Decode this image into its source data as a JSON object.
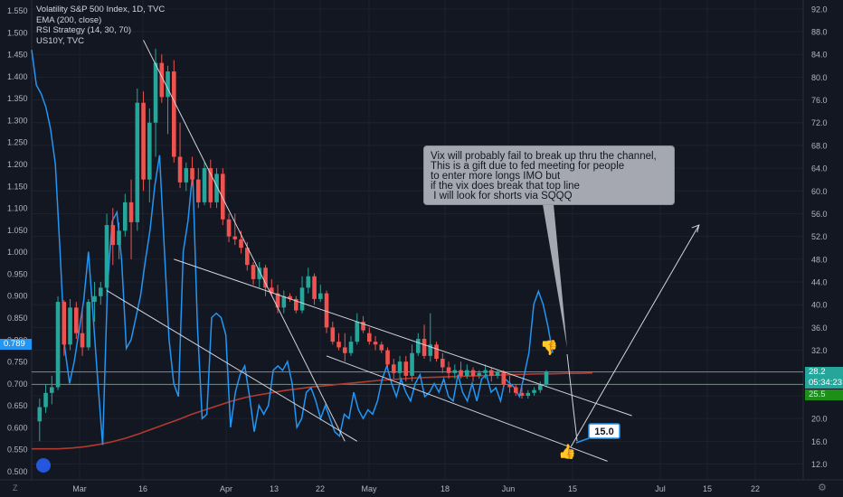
{
  "legend": {
    "title": "Volatility S&P 500 Index, 1D, TVC",
    "ema": "EMA (200, close)",
    "rsi": "RSI Strategy (14, 30, 70)",
    "us10y": "US10Y, TVC"
  },
  "annotation": {
    "text": "Vix will probably fail to break up thru the channel,\nThis is a gift due to fed meeting for people\nto enter more longs IMO but\nif the vix does break that top line\n I will look for shorts via SQQQ",
    "target_label": "15.0"
  },
  "price_badges": {
    "left_us10y": "0.789",
    "right_last": "28.2",
    "right_countdown": "05:34:23",
    "right_small": "25.5"
  },
  "corner_buttons": {
    "left": "Z",
    "right": "⚙"
  },
  "colors": {
    "background": "#131722",
    "up": "#26a69a",
    "down": "#ef5350",
    "us10y_line": "#2196f3",
    "ema_line": "#b33a2e",
    "trendlines": "#d1d4dc",
    "green_hline": "#4caf50",
    "teal_hline": "#26a69a"
  },
  "chart_data": {
    "type": "candlestick",
    "x_axis_labels": [
      "Mar",
      "16",
      "Apr",
      "13",
      "22",
      "May",
      "18",
      "Jun",
      "15",
      "Jul",
      "15",
      "22"
    ],
    "left_axis": {
      "label": "US10Y",
      "ticks": [
        0.5,
        0.55,
        0.6,
        0.65,
        0.7,
        0.75,
        0.8,
        0.85,
        0.9,
        0.95,
        1.0,
        1.05,
        1.1,
        1.15,
        1.2,
        1.25,
        1.3,
        1.35,
        1.4,
        1.45,
        1.5,
        1.55
      ]
    },
    "right_axis": {
      "label": "VIX",
      "ticks": [
        12,
        16,
        20,
        24,
        28,
        32,
        36,
        40,
        44,
        48,
        52,
        56,
        60,
        64,
        68,
        72,
        76,
        80,
        84,
        88,
        92
      ]
    },
    "vix_candles": [
      {
        "o": 19.5,
        "h": 23.5,
        "l": 16.0,
        "c": 22.0
      },
      {
        "o": 22.0,
        "h": 26.0,
        "l": 21.0,
        "c": 24.5
      },
      {
        "o": 24.5,
        "h": 27.5,
        "l": 22.5,
        "c": 25.5
      },
      {
        "o": 25.5,
        "h": 41.5,
        "l": 25.0,
        "c": 40.5
      },
      {
        "o": 40.5,
        "h": 40.8,
        "l": 31.0,
        "c": 33.0
      },
      {
        "o": 33.0,
        "h": 41.0,
        "l": 32.0,
        "c": 39.5
      },
      {
        "o": 39.5,
        "h": 40.5,
        "l": 34.0,
        "c": 35.0
      },
      {
        "o": 35.0,
        "h": 39.0,
        "l": 31.0,
        "c": 32.5
      },
      {
        "o": 32.5,
        "h": 41.0,
        "l": 32.0,
        "c": 40.5
      },
      {
        "o": 40.5,
        "h": 44.0,
        "l": 37.0,
        "c": 41.5
      },
      {
        "o": 41.5,
        "h": 44.0,
        "l": 40.0,
        "c": 43.0
      },
      {
        "o": 43.0,
        "h": 56.0,
        "l": 41.5,
        "c": 54.0
      },
      {
        "o": 54.0,
        "h": 57.0,
        "l": 47.0,
        "c": 50.5
      },
      {
        "o": 50.5,
        "h": 54.5,
        "l": 48.0,
        "c": 53.0
      },
      {
        "o": 53.0,
        "h": 59.5,
        "l": 52.0,
        "c": 58.0
      },
      {
        "o": 58.0,
        "h": 62.0,
        "l": 48.0,
        "c": 54.5
      },
      {
        "o": 54.5,
        "h": 78.0,
        "l": 53.0,
        "c": 75.5
      },
      {
        "o": 75.5,
        "h": 77.5,
        "l": 60.0,
        "c": 62.0
      },
      {
        "o": 62.0,
        "h": 74.5,
        "l": 58.0,
        "c": 72.0
      },
      {
        "o": 72.0,
        "h": 85.0,
        "l": 66.0,
        "c": 82.5
      },
      {
        "o": 82.5,
        "h": 84.0,
        "l": 75.5,
        "c": 76.5
      },
      {
        "o": 76.5,
        "h": 82.0,
        "l": 70.0,
        "c": 81.0
      },
      {
        "o": 81.0,
        "h": 83.0,
        "l": 65.0,
        "c": 66.0
      },
      {
        "o": 66.0,
        "h": 72.0,
        "l": 60.5,
        "c": 61.5
      },
      {
        "o": 61.5,
        "h": 65.0,
        "l": 60.0,
        "c": 64.0
      },
      {
        "o": 64.0,
        "h": 66.0,
        "l": 61.0,
        "c": 62.0
      },
      {
        "o": 62.0,
        "h": 64.0,
        "l": 57.0,
        "c": 58.0
      },
      {
        "o": 58.0,
        "h": 65.0,
        "l": 57.5,
        "c": 64.0
      },
      {
        "o": 64.0,
        "h": 65.5,
        "l": 57.0,
        "c": 58.0
      },
      {
        "o": 58.0,
        "h": 64.0,
        "l": 57.0,
        "c": 63.0
      },
      {
        "o": 63.0,
        "h": 64.0,
        "l": 54.0,
        "c": 55.0
      },
      {
        "o": 55.0,
        "h": 56.0,
        "l": 51.0,
        "c": 52.0
      },
      {
        "o": 52.0,
        "h": 56.0,
        "l": 50.5,
        "c": 51.5
      },
      {
        "o": 51.5,
        "h": 53.0,
        "l": 49.0,
        "c": 50.0
      },
      {
        "o": 50.0,
        "h": 51.0,
        "l": 46.0,
        "c": 47.0
      },
      {
        "o": 47.0,
        "h": 47.5,
        "l": 43.5,
        "c": 44.5
      },
      {
        "o": 44.5,
        "h": 47.5,
        "l": 43.0,
        "c": 46.5
      },
      {
        "o": 46.5,
        "h": 47.0,
        "l": 41.5,
        "c": 43.0
      },
      {
        "o": 43.0,
        "h": 44.5,
        "l": 41.5,
        "c": 42.0
      },
      {
        "o": 42.0,
        "h": 43.5,
        "l": 38.5,
        "c": 39.5
      },
      {
        "o": 39.5,
        "h": 42.5,
        "l": 38.5,
        "c": 41.5
      },
      {
        "o": 41.5,
        "h": 42.0,
        "l": 40.5,
        "c": 41.0
      },
      {
        "o": 41.0,
        "h": 41.5,
        "l": 38.5,
        "c": 39.0
      },
      {
        "o": 39.0,
        "h": 45.0,
        "l": 38.5,
        "c": 43.0
      },
      {
        "o": 43.0,
        "h": 46.5,
        "l": 42.0,
        "c": 45.0
      },
      {
        "o": 45.0,
        "h": 45.5,
        "l": 40.0,
        "c": 41.0
      },
      {
        "o": 41.0,
        "h": 43.5,
        "l": 40.5,
        "c": 42.0
      },
      {
        "o": 42.0,
        "h": 42.5,
        "l": 35.0,
        "c": 36.0
      },
      {
        "o": 36.0,
        "h": 37.0,
        "l": 33.0,
        "c": 33.5
      },
      {
        "o": 33.5,
        "h": 35.0,
        "l": 32.0,
        "c": 32.5
      },
      {
        "o": 32.5,
        "h": 35.0,
        "l": 30.0,
        "c": 31.5
      },
      {
        "o": 31.5,
        "h": 34.5,
        "l": 31.0,
        "c": 33.5
      },
      {
        "o": 33.5,
        "h": 38.5,
        "l": 33.0,
        "c": 37.0
      },
      {
        "o": 37.0,
        "h": 38.0,
        "l": 35.0,
        "c": 35.5
      },
      {
        "o": 35.0,
        "h": 36.0,
        "l": 33.0,
        "c": 33.5
      },
      {
        "o": 33.5,
        "h": 34.5,
        "l": 32.0,
        "c": 33.0
      },
      {
        "o": 33.0,
        "h": 33.5,
        "l": 31.5,
        "c": 32.0
      },
      {
        "o": 32.0,
        "h": 32.5,
        "l": 29.0,
        "c": 29.5
      },
      {
        "o": 29.5,
        "h": 30.5,
        "l": 27.0,
        "c": 28.0
      },
      {
        "o": 28.0,
        "h": 31.0,
        "l": 27.0,
        "c": 30.0
      },
      {
        "o": 30.0,
        "h": 31.0,
        "l": 26.5,
        "c": 27.5
      },
      {
        "o": 27.5,
        "h": 33.0,
        "l": 26.5,
        "c": 31.5
      },
      {
        "o": 31.5,
        "h": 35.0,
        "l": 31.0,
        "c": 34.0
      },
      {
        "o": 34.0,
        "h": 36.5,
        "l": 30.5,
        "c": 31.0
      },
      {
        "o": 31.0,
        "h": 38.5,
        "l": 30.0,
        "c": 33.0
      },
      {
        "o": 33.0,
        "h": 33.5,
        "l": 30.0,
        "c": 30.5
      },
      {
        "o": 30.5,
        "h": 31.5,
        "l": 28.0,
        "c": 29.0
      },
      {
        "o": 29.0,
        "h": 30.0,
        "l": 27.0,
        "c": 28.0
      },
      {
        "o": 28.0,
        "h": 29.5,
        "l": 27.0,
        "c": 28.5
      },
      {
        "o": 28.5,
        "h": 30.0,
        "l": 27.0,
        "c": 27.5
      },
      {
        "o": 27.5,
        "h": 29.5,
        "l": 27.0,
        "c": 28.5
      },
      {
        "o": 28.5,
        "h": 29.0,
        "l": 26.5,
        "c": 27.5
      },
      {
        "o": 27.5,
        "h": 28.5,
        "l": 27.0,
        "c": 28.0
      },
      {
        "o": 28.0,
        "h": 29.5,
        "l": 27.0,
        "c": 28.5
      },
      {
        "o": 28.5,
        "h": 29.0,
        "l": 26.5,
        "c": 27.5
      },
      {
        "o": 27.5,
        "h": 28.5,
        "l": 27.0,
        "c": 28.2
      },
      {
        "o": 28.2,
        "h": 28.5,
        "l": 25.5,
        "c": 26.0
      },
      {
        "o": 26.0,
        "h": 27.5,
        "l": 24.5,
        "c": 25.5
      },
      {
        "o": 25.5,
        "h": 26.0,
        "l": 24.0,
        "c": 24.5
      },
      {
        "o": 24.5,
        "h": 25.5,
        "l": 23.5,
        "c": 24.0
      },
      {
        "o": 24.0,
        "h": 25.0,
        "l": 23.5,
        "c": 24.5
      },
      {
        "o": 24.5,
        "h": 25.5,
        "l": 24.0,
        "c": 25.0
      },
      {
        "o": 25.0,
        "h": 26.5,
        "l": 24.5,
        "c": 26.0
      },
      {
        "o": 26.0,
        "h": 28.5,
        "l": 25.5,
        "c": 28.2
      }
    ],
    "us10y_values": [
      1.46,
      1.38,
      1.36,
      1.33,
      1.28,
      1.2,
      1.0,
      0.78,
      0.7,
      0.75,
      0.82,
      0.89,
      1.0,
      0.85,
      0.7,
      0.56,
      0.92,
      1.07,
      1.09,
      0.98,
      0.78,
      0.8,
      0.85,
      0.9,
      0.98,
      1.05,
      1.15,
      1.22,
      1.01,
      0.8,
      0.7,
      0.67,
      1.0,
      1.07,
      1.18,
      0.83,
      0.62,
      0.63,
      0.85,
      0.86,
      0.85,
      0.81,
      0.6,
      0.68,
      0.72,
      0.74,
      0.67,
      0.59,
      0.65,
      0.63,
      0.65,
      0.73,
      0.74,
      0.73,
      0.75,
      0.7,
      0.6,
      0.62,
      0.68,
      0.69,
      0.66,
      0.62,
      0.65,
      0.62,
      0.59,
      0.58,
      0.63,
      0.62,
      0.68,
      0.64,
      0.62,
      0.64,
      0.63,
      0.66,
      0.71,
      0.74,
      0.7,
      0.67,
      0.71,
      0.68,
      0.66,
      0.7,
      0.72,
      0.67,
      0.68,
      0.7,
      0.68,
      0.71,
      0.67,
      0.66,
      0.72,
      0.68,
      0.66,
      0.7,
      0.66,
      0.71,
      0.72,
      0.68,
      0.69,
      0.66,
      0.71,
      0.7,
      0.69,
      0.67,
      0.72,
      0.77,
      0.88,
      0.91,
      0.88,
      0.83,
      0.77
    ],
    "ema200_values": [
      0.551,
      0.551,
      0.551,
      0.553,
      0.556,
      0.561,
      0.567,
      0.575,
      0.585,
      0.596,
      0.607,
      0.618,
      0.63,
      0.64,
      0.65,
      0.66,
      0.668,
      0.674,
      0.679,
      0.684,
      0.688,
      0.692,
      0.695,
      0.698,
      0.701,
      0.704,
      0.707,
      0.709,
      0.711,
      0.713,
      0.714,
      0.715,
      0.716,
      0.717,
      0.718,
      0.719,
      0.72,
      0.721,
      0.722,
      0.722,
      0.723,
      0.723,
      0.724
    ],
    "horizontal_levels": {
      "green": 28.2,
      "teal": 26.0
    },
    "channel_lines": [
      {
        "name": "upper-channel",
        "from": [
          22,
          48.0
        ],
        "to": [
          97,
          20.5
        ]
      },
      {
        "name": "lower-channel",
        "from": [
          47,
          31.0
        ],
        "to": [
          93,
          12.5
        ]
      },
      {
        "name": "falling-wedge-upper",
        "from": [
          17,
          86.5
        ],
        "to": [
          50,
          16.0
        ]
      },
      {
        "name": "falling-wedge-lower",
        "from": [
          11,
          42.5
        ],
        "to": [
          52,
          16.0
        ]
      },
      {
        "name": "projection-arrow",
        "from": [
          87,
          15.0
        ],
        "to": [
          108,
          54.0
        ]
      }
    ]
  }
}
